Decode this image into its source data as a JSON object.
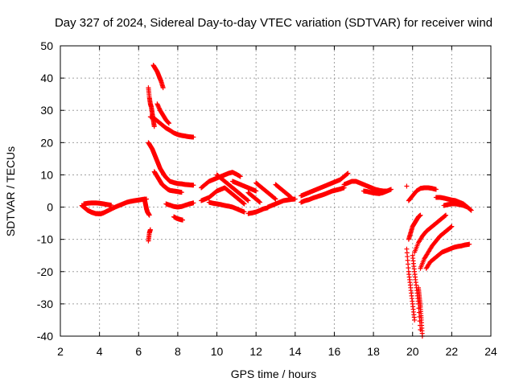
{
  "chart_data": {
    "type": "scatter",
    "title": "Day 327 of 2024, Sidereal Day-to-day VTEC variation (SDTVAR) for receiver wind",
    "xlabel": "GPS time / hours",
    "ylabel": "SDTVAR / TECUs",
    "xlim": [
      2,
      24
    ],
    "ylim": [
      -40,
      50
    ],
    "xticks": [
      "2",
      "4",
      "6",
      "8",
      "10",
      "12",
      "14",
      "16",
      "18",
      "20",
      "22",
      "24"
    ],
    "yticks": [
      "-40",
      "-30",
      "-20",
      "-10",
      "0",
      "10",
      "20",
      "30",
      "40",
      "50"
    ],
    "grid": true,
    "marker": "+",
    "color": "#ff0000",
    "series": [
      {
        "name": "seg-a",
        "x": [
          3.1,
          3.2,
          3.3,
          3.4,
          3.5,
          3.6,
          3.7,
          3.8,
          3.9,
          4.0,
          4.1,
          4.2,
          4.4,
          4.6,
          4.8,
          5.0,
          5.2,
          5.4,
          5.6,
          5.8,
          6.0,
          6.2,
          6.4
        ],
        "y": [
          0.5,
          0.0,
          -0.5,
          -1.0,
          -1.3,
          -1.6,
          -1.8,
          -2.0,
          -2.0,
          -2.1,
          -2.0,
          -1.8,
          -1.2,
          -0.6,
          0.0,
          0.5,
          1.0,
          1.5,
          1.8,
          2.0,
          2.2,
          2.4,
          2.5
        ]
      },
      {
        "name": "seg-b",
        "x": [
          3.2,
          3.4,
          3.6,
          3.8,
          4.0,
          4.2,
          4.4,
          4.6
        ],
        "y": [
          1.0,
          1.2,
          1.3,
          1.3,
          1.2,
          1.0,
          0.8,
          0.6
        ]
      },
      {
        "name": "seg-c",
        "x": [
          6.3,
          6.35,
          6.4,
          6.45,
          6.5,
          6.55
        ],
        "y": [
          2.5,
          1.0,
          -0.5,
          -1.5,
          -2.0,
          -2.5
        ]
      },
      {
        "name": "seg-d",
        "x": [
          6.5,
          6.55,
          6.6
        ],
        "y": [
          -10.5,
          -8.0,
          -7.0
        ]
      },
      {
        "name": "seg-e",
        "x": [
          6.5,
          6.55,
          6.6,
          6.65,
          6.7,
          6.75,
          6.8
        ],
        "y": [
          37,
          34,
          32,
          31,
          29,
          27,
          25
        ]
      },
      {
        "name": "seg-f",
        "x": [
          6.75,
          6.85,
          6.95,
          7.05,
          7.15,
          7.25
        ],
        "y": [
          44,
          43,
          42,
          40.5,
          39,
          37
        ]
      },
      {
        "name": "seg-g",
        "x": [
          6.6,
          6.8,
          7.0,
          7.2,
          7.4,
          7.6,
          7.8,
          8.0,
          8.2,
          8.4,
          8.6,
          8.8
        ],
        "y": [
          28,
          27.5,
          26.5,
          25.5,
          24.5,
          23.8,
          23.0,
          22.5,
          22.2,
          22.0,
          21.8,
          21.7
        ]
      },
      {
        "name": "seg-h",
        "x": [
          6.95,
          7.1,
          7.25,
          7.4,
          7.55
        ],
        "y": [
          32,
          30,
          28.5,
          27,
          26
        ]
      },
      {
        "name": "seg-i",
        "x": [
          6.5,
          6.6,
          6.7,
          6.8,
          6.9,
          7.0,
          7.1,
          7.2,
          7.3,
          7.4,
          7.5,
          7.6,
          7.8,
          8.0,
          8.2,
          8.4,
          8.6,
          8.8
        ],
        "y": [
          20,
          19,
          18,
          16.5,
          15,
          13.5,
          12,
          11,
          10,
          9.2,
          8.6,
          8.0,
          7.6,
          7.3,
          7.2,
          7.0,
          6.9,
          6.8
        ]
      },
      {
        "name": "seg-j",
        "x": [
          6.8,
          6.9,
          7.0,
          7.1,
          7.2,
          7.3,
          7.4,
          7.5,
          7.6,
          7.8,
          8.0,
          8.2
        ],
        "y": [
          11,
          10,
          9,
          8,
          7,
          6.5,
          6,
          5.5,
          5.2,
          5.0,
          4.8,
          4.6
        ]
      },
      {
        "name": "seg-k",
        "x": [
          7.4,
          7.6,
          7.8,
          8.0,
          8.2,
          8.4,
          8.6,
          8.8
        ],
        "y": [
          1.0,
          0.6,
          0.2,
          0.0,
          0.2,
          0.6,
          1.0,
          1.3
        ]
      },
      {
        "name": "seg-l",
        "x": [
          7.8,
          7.95,
          8.1,
          8.25
        ],
        "y": [
          -3.0,
          -3.5,
          -3.8,
          -4.0
        ]
      },
      {
        "name": "seg-m",
        "x": [
          9.2,
          9.4,
          9.6,
          9.8,
          10.0,
          10.2,
          10.4,
          10.6,
          10.8,
          11.0,
          11.2
        ],
        "y": [
          6,
          7,
          8,
          8.5,
          9,
          9.5,
          10,
          10.5,
          10.8,
          10.2,
          9.5
        ]
      },
      {
        "name": "seg-n",
        "x": [
          9.2,
          9.4,
          9.6,
          9.8,
          10.0,
          10.2,
          10.4,
          10.6,
          10.8,
          11.0,
          11.2,
          11.4
        ],
        "y": [
          2.0,
          2.5,
          3.0,
          4.0,
          5.0,
          5.5,
          6.0,
          5.0,
          4.0,
          3.0,
          2.0,
          1.0
        ]
      },
      {
        "name": "seg-o",
        "x": [
          10.0,
          10.2,
          10.4,
          10.6,
          10.8,
          11.0,
          11.2,
          11.4,
          11.6
        ],
        "y": [
          10,
          9,
          8,
          7,
          6,
          5,
          4,
          3,
          2
        ]
      },
      {
        "name": "seg-p",
        "x": [
          9.6,
          9.8,
          10.0,
          10.2,
          10.4,
          10.6,
          10.8,
          11.0,
          11.2,
          11.4
        ],
        "y": [
          1.5,
          1.2,
          1.0,
          0.8,
          0.5,
          0.3,
          0.0,
          -0.5,
          -1.0,
          -1.5
        ]
      },
      {
        "name": "seg-q",
        "x": [
          10.8,
          11.0,
          11.2,
          11.4,
          11.6,
          11.8,
          12.0
        ],
        "y": [
          8,
          7.5,
          7,
          6.5,
          6,
          5.5,
          5
        ]
      },
      {
        "name": "seg-r",
        "x": [
          11.6,
          11.8,
          12.0,
          12.2
        ],
        "y": [
          4.5,
          3.5,
          2.5,
          1.5
        ]
      },
      {
        "name": "seg-s",
        "x": [
          12.0,
          12.2,
          12.4,
          12.6,
          12.8,
          13.0
        ],
        "y": [
          7.5,
          6.5,
          5.5,
          4.5,
          3.5,
          2.5
        ]
      },
      {
        "name": "seg-t",
        "x": [
          13.0,
          13.2,
          13.4,
          13.6,
          13.8
        ],
        "y": [
          7,
          6,
          5,
          4,
          3
        ]
      },
      {
        "name": "seg-u",
        "x": [
          11.6,
          11.8,
          12.0,
          12.2,
          12.4,
          12.6
        ],
        "y": [
          -2.0,
          -1.8,
          -1.5,
          -1.0,
          -0.5,
          -0.2
        ]
      },
      {
        "name": "seg-v",
        "x": [
          12.6,
          12.8,
          13.0,
          13.2,
          13.4,
          13.6,
          13.8,
          14.0
        ],
        "y": [
          0.0,
          0.5,
          1.0,
          1.5,
          2.0,
          2.2,
          2.4,
          2.5
        ]
      },
      {
        "name": "seg-w",
        "x": [
          14.3,
          14.5,
          14.7,
          14.9,
          15.1,
          15.3,
          15.5,
          15.7,
          15.9,
          16.1,
          16.3,
          16.5,
          16.7
        ],
        "y": [
          3.5,
          4.0,
          4.5,
          5.0,
          5.5,
          6.0,
          6.5,
          7.0,
          7.5,
          8.0,
          8.5,
          9.5,
          10.5
        ]
      },
      {
        "name": "seg-x",
        "x": [
          14.3,
          14.5,
          14.7,
          14.9,
          15.1,
          15.3,
          15.5,
          15.7,
          15.9,
          16.1,
          16.3,
          16.5
        ],
        "y": [
          1.5,
          2.0,
          2.3,
          2.8,
          3.2,
          3.6,
          4.0,
          4.5,
          5.0,
          5.3,
          5.6,
          6.0
        ]
      },
      {
        "name": "seg-y",
        "x": [
          16.5,
          16.7,
          16.9,
          17.1,
          17.3,
          17.5,
          17.7,
          17.9,
          18.1,
          18.3,
          18.5,
          18.7
        ],
        "y": [
          7.0,
          7.5,
          8.0,
          8.0,
          7.5,
          7.0,
          6.5,
          6.0,
          5.5,
          5.2,
          5.0,
          5.0
        ]
      },
      {
        "name": "seg-z",
        "x": [
          17.5,
          17.7,
          17.9,
          18.1,
          18.3,
          18.5,
          18.7,
          18.9
        ],
        "y": [
          5.0,
          4.8,
          4.5,
          4.3,
          4.2,
          4.5,
          5.0,
          5.5
        ]
      },
      {
        "name": "seg-aa",
        "x": [
          19.7
        ],
        "y": [
          6.5
        ]
      },
      {
        "name": "seg-ab",
        "x": [
          19.8,
          20.0,
          20.2,
          20.4,
          20.6,
          20.8,
          21.0,
          21.2
        ],
        "y": [
          2.0,
          3.5,
          5.0,
          5.8,
          6.0,
          6.0,
          5.8,
          5.5
        ]
      },
      {
        "name": "seg-ac",
        "x": [
          21.2,
          21.4,
          21.6,
          21.8,
          22.0,
          22.2,
          22.4,
          22.6,
          22.8,
          23.0
        ],
        "y": [
          3.0,
          3.0,
          2.8,
          2.5,
          2.2,
          2.0,
          1.5,
          1.0,
          0.0,
          -1.0
        ]
      },
      {
        "name": "seg-ad",
        "x": [
          21.6,
          21.8,
          22.0,
          22.2,
          22.4,
          22.6,
          22.8
        ],
        "y": [
          0.5,
          0.8,
          1.0,
          1.0,
          0.8,
          0.5,
          0.0
        ]
      },
      {
        "name": "seg-ae",
        "x": [
          19.8,
          19.9,
          20.0,
          20.1,
          20.2,
          20.3,
          20.4
        ],
        "y": [
          -10,
          -8,
          -6,
          -5,
          -4,
          -3,
          -2.5
        ]
      },
      {
        "name": "seg-af",
        "x": [
          19.7,
          19.8,
          19.9,
          20.0,
          20.1
        ],
        "y": [
          -13,
          -20,
          -25,
          -30,
          -35
        ]
      },
      {
        "name": "seg-ag",
        "x": [
          20.1,
          20.3,
          20.5,
          20.7,
          20.9,
          21.1,
          21.3,
          21.5,
          21.7
        ],
        "y": [
          -14,
          -11,
          -9,
          -7.5,
          -6.5,
          -5.5,
          -4.5,
          -3.5,
          -2.5
        ]
      },
      {
        "name": "seg-ah",
        "x": [
          20.0,
          20.1,
          20.2,
          20.3,
          20.4
        ],
        "y": [
          -15,
          -20,
          -25,
          -30,
          -38
        ]
      },
      {
        "name": "seg-ai",
        "x": [
          20.4,
          20.6,
          20.8,
          21.0,
          21.2,
          21.4,
          21.6,
          21.8,
          22.0
        ],
        "y": [
          -19,
          -16,
          -14,
          -12,
          -10.5,
          -9,
          -8,
          -7,
          -6
        ]
      },
      {
        "name": "seg-aj",
        "x": [
          20.3,
          20.35,
          20.4,
          20.45,
          20.5
        ],
        "y": [
          -25,
          -28,
          -31,
          -35,
          -40
        ]
      },
      {
        "name": "seg-ak",
        "x": [
          20.7,
          20.9,
          21.1,
          21.3,
          21.5,
          21.7,
          21.9,
          22.1,
          22.3,
          22.5,
          22.7,
          22.9
        ],
        "y": [
          -19,
          -17,
          -16,
          -15,
          -14,
          -13.5,
          -13,
          -12.5,
          -12.2,
          -12,
          -11.7,
          -11.5
        ]
      }
    ]
  }
}
